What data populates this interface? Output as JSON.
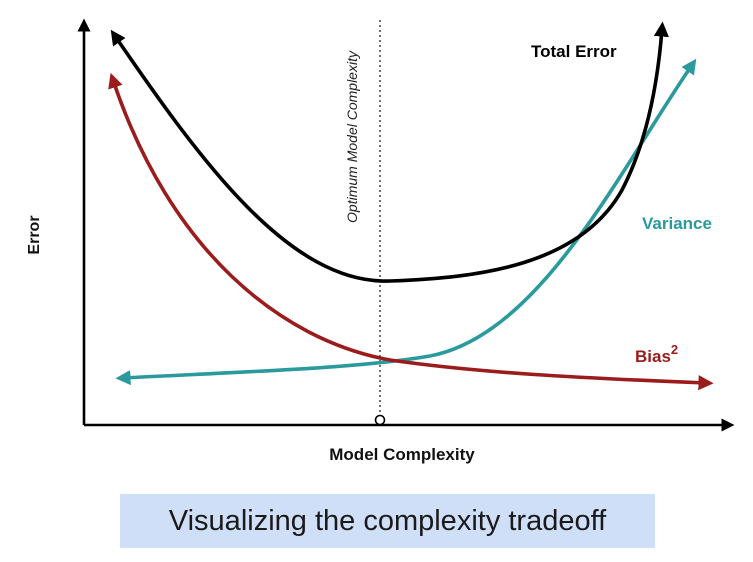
{
  "diagram": {
    "y_axis_label": "Error",
    "x_axis_label": "Model Complexity",
    "optimum_label": "Optimum Model Complexity",
    "curves": {
      "total_error": {
        "label": "Total Error",
        "color": "#000000"
      },
      "variance": {
        "label": "Variance",
        "color": "#2a9a9c"
      },
      "bias": {
        "label": "Bias",
        "label_superscript": "2",
        "color": "#9b1c1c"
      }
    }
  },
  "caption": {
    "text": "Visualizing the complexity tradeoff",
    "background": "#cfdff7"
  }
}
